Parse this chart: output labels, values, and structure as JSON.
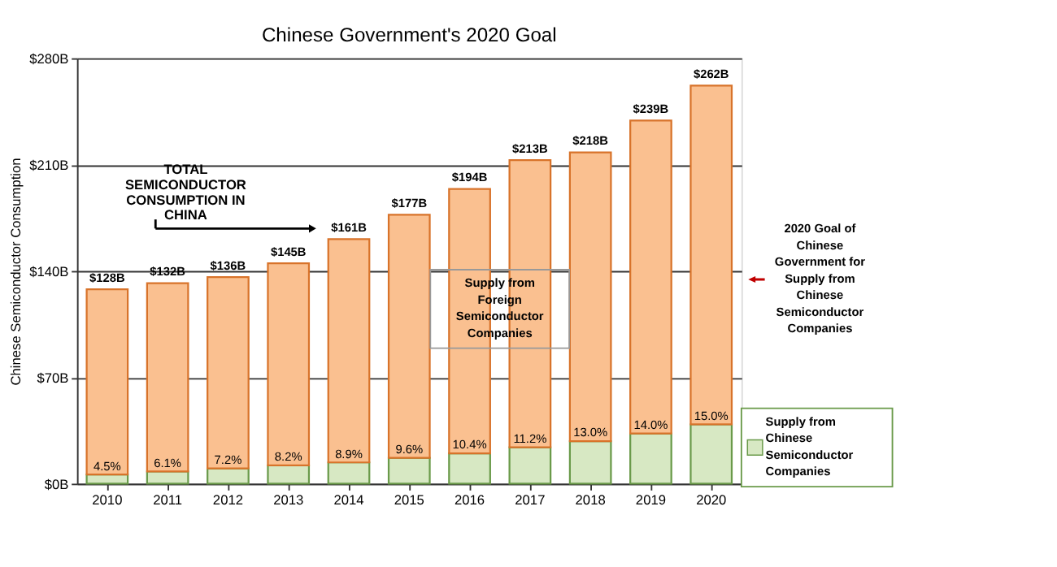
{
  "chart_data": {
    "type": "bar",
    "title": "Chinese Government's 2020 Goal",
    "ylabel": "Chinese Semiconductor Consumption",
    "categories": [
      "2010",
      "2011",
      "2012",
      "2013",
      "2014",
      "2015",
      "2016",
      "2017",
      "2018",
      "2019",
      "2020"
    ],
    "stacked": true,
    "series": [
      {
        "name": "Supply from\nChinese\nSemiconductor\nCompanies",
        "color": "#d7e8c3",
        "values": [
          6,
          8,
          10,
          12,
          14,
          17,
          20,
          24,
          28,
          33,
          39
        ]
      },
      {
        "name": "Supply from\nForeign\nSemiconductor\nCompanies",
        "color": "#fac090",
        "values": [
          122,
          124,
          126,
          133,
          147,
          160,
          174,
          189,
          190,
          206,
          223
        ]
      }
    ],
    "totals": [
      "$128B",
      "$132B",
      "$136B",
      "$145B",
      "$161B",
      "$177B",
      "$194B",
      "$213B",
      "$218B",
      "$239B",
      "$262B"
    ],
    "ylim": [
      0,
      280
    ],
    "yticks": [
      {
        "value": 0,
        "label": "$0B"
      },
      {
        "value": 70,
        "label": "$70B"
      },
      {
        "value": 140,
        "label": "$140B"
      },
      {
        "value": 210,
        "label": "$210B"
      },
      {
        "value": 280,
        "label": "$280B"
      }
    ],
    "grid": "y",
    "annotations": [
      "TOTAL\nSEMICONDUCTOR\nCONSUMPTION IN\nCHINA",
      "2020 Goal of\nChinese\nGovernment for\nSupply from\nChinese\nSemiconductor\nCompanies",
      {
        "text": "4.5%",
        "x": "2010",
        "y": 6
      },
      {
        "text": "6.1%",
        "x": "2011",
        "y": 8
      },
      {
        "text": "7.2%",
        "x": "2012",
        "y": 10
      },
      {
        "text": "8.2%",
        "x": "2013",
        "y": 12
      },
      {
        "text": "8.9%",
        "x": "2014",
        "y": 14
      },
      {
        "text": "9.6%",
        "x": "2015",
        "y": 17
      },
      {
        "text": "10.4%",
        "x": "2016",
        "y": 20
      },
      {
        "text": "11.2%",
        "x": "2017",
        "y": 24
      },
      {
        "text": "13.0%",
        "x": "2018",
        "y": 28
      },
      {
        "text": "14.0%",
        "x": "2019",
        "y": 33
      },
      {
        "text": "15.0%",
        "x": "2020",
        "y": 39
      }
    ]
  }
}
